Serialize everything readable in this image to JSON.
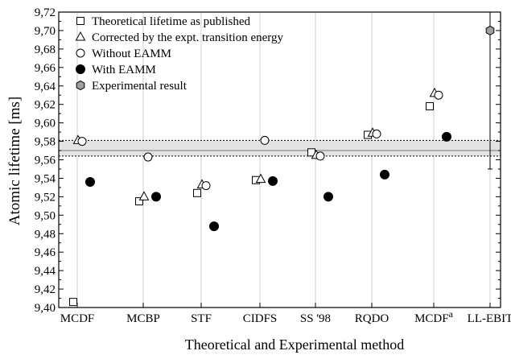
{
  "chart_data": {
    "type": "scatter",
    "xlabel": "Theoretical and Experimental method",
    "ylabel": "Atomic lifetime [ms]",
    "ylim": [
      9.4,
      9.72
    ],
    "yticks": [
      "9,40",
      "9,42",
      "9,44",
      "9,46",
      "9,48",
      "9,50",
      "9,52",
      "9,54",
      "9,56",
      "9,58",
      "9,60",
      "9,62",
      "9,64",
      "9,66",
      "9,68",
      "9,70",
      "9,72"
    ],
    "categories": [
      "MCDF",
      "MCBP",
      "STF",
      "CIDFS",
      "SS '98",
      "RQDO",
      "MCDF",
      "LL-EBIT"
    ],
    "category_superscripts": [
      "",
      "",
      "",
      "",
      "",
      "",
      "a",
      ""
    ],
    "vertical_gridlines": true,
    "legend_position": "top-left",
    "series": [
      {
        "name": "Theoretical lifetime as published",
        "marker": "square",
        "points": [
          {
            "cat": 0,
            "y": 9.406
          },
          {
            "cat": 1,
            "y": 9.515
          },
          {
            "cat": 2,
            "y": 9.524
          },
          {
            "cat": 3,
            "y": 9.538
          },
          {
            "cat": 4,
            "y": 9.568
          },
          {
            "cat": 5,
            "y": 9.587
          },
          {
            "cat": 6,
            "y": 9.618
          }
        ]
      },
      {
        "name": "Corrected by the expt. transition energy",
        "marker": "triangle",
        "points": [
          {
            "cat": 0,
            "y": 9.581
          },
          {
            "cat": 1,
            "y": 9.52
          },
          {
            "cat": 2,
            "y": 9.533
          },
          {
            "cat": 3,
            "y": 9.539
          },
          {
            "cat": 4,
            "y": 9.565
          },
          {
            "cat": 5,
            "y": 9.589
          },
          {
            "cat": 6,
            "y": 9.632
          }
        ]
      },
      {
        "name": "Without EAMM",
        "marker": "circle-open",
        "points": [
          {
            "cat": 0,
            "y": 9.58
          },
          {
            "cat": 1,
            "y": 9.563
          },
          {
            "cat": 2,
            "y": 9.532
          },
          {
            "cat": 3,
            "y": 9.581
          },
          {
            "cat": 4,
            "y": 9.564
          },
          {
            "cat": 5,
            "y": 9.588
          },
          {
            "cat": 6,
            "y": 9.63
          }
        ]
      },
      {
        "name": "With EAMM",
        "marker": "circle-filled",
        "points": [
          {
            "cat": 0,
            "y": 9.536
          },
          {
            "cat": 1,
            "y": 9.52
          },
          {
            "cat": 2,
            "y": 9.488
          },
          {
            "cat": 3,
            "y": 9.537
          },
          {
            "cat": 4,
            "y": 9.52
          },
          {
            "cat": 5,
            "y": 9.544
          },
          {
            "cat": 6,
            "y": 9.585
          }
        ]
      },
      {
        "name": "Experimental result",
        "marker": "hexagon",
        "points": [
          {
            "cat": 7,
            "y": 9.7,
            "err_low": 9.55,
            "err_high": 9.85
          }
        ]
      }
    ],
    "band": {
      "center": 9.57,
      "low": 9.564,
      "high": 9.581
    }
  }
}
